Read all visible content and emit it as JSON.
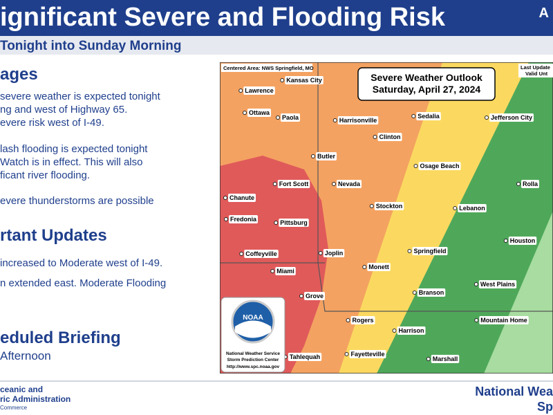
{
  "header": {
    "title": "ignificant Severe and Flooding Risk",
    "corner": "A",
    "subtitle": "Tonight into Sunday Morning"
  },
  "sections": [
    {
      "heading": "ages",
      "paragraphs": [
        [
          "severe weather is expected tonight",
          "ng and west of Highway 65.",
          "evere risk west of I-49."
        ],
        [
          "lash flooding is expected tonight",
          " Watch is in effect. This will also",
          "ficant river flooding."
        ],
        [
          "evere thunderstorms are possible"
        ]
      ]
    },
    {
      "heading": "rtant Updates",
      "paragraphs": [
        [
          "increased to Moderate west of I-49."
        ],
        [
          "n extended east. Moderate Flooding"
        ]
      ]
    },
    {
      "heading": "eduled Briefing",
      "paragraphs": [
        [
          "Afternoon"
        ]
      ]
    }
  ],
  "footer": {
    "left": [
      "ceanic and",
      "ric Administration",
      "Commerce"
    ],
    "right": [
      "National Wea",
      "Sp"
    ]
  },
  "map": {
    "centered": "Centered Area: NWS Springfield, MO",
    "last_updated": "Last Update",
    "valid": "Valid Unt",
    "outlook_title": "Severe Weather Outlook",
    "outlook_date": "Saturday, April 27, 2024",
    "cities": [
      "Kansas City",
      "Lawrence",
      "Ottawa",
      "Paola",
      "Harrisonville",
      "Sedalia",
      "Jefferson City",
      "Clinton",
      "Butler",
      "Osage Beach",
      "Fort Scott",
      "Nevada",
      "Rolla",
      "Chanute",
      "Stockton",
      "Lebanon",
      "Fredonia",
      "Pittsburg",
      "Houston",
      "Springfield",
      "Coffeyville",
      "Joplin",
      "Miami",
      "Monett",
      "West Plains",
      "Branson",
      "Grove",
      "Rogers",
      "Mountain Home",
      "Harrison",
      "Fayetteville",
      "Marshall",
      "Tahlequah"
    ],
    "logo": {
      "name": "NOAA",
      "line1": "National Weather Service",
      "line2": "Storm Prediction Center",
      "url": "http://www.spc.noaa.gov"
    }
  }
}
